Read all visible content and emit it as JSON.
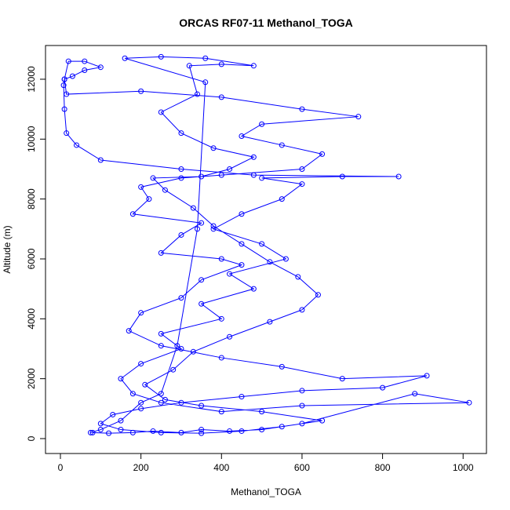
{
  "chart_data": {
    "type": "scatter",
    "title": "ORCAS RF07-11 Methanol_TOGA",
    "xlabel": "Methanol_TOGA",
    "ylabel": "Altitude (m)",
    "color": "#0000ff",
    "connect": true,
    "xlim": [
      -37,
      1058
    ],
    "ylim": [
      -498,
      13126
    ],
    "xticks": [
      0,
      200,
      400,
      600,
      800,
      1000
    ],
    "yticks": [
      0,
      2000,
      4000,
      6000,
      8000,
      10000,
      12000
    ],
    "x": [
      80,
      120,
      180,
      230,
      300,
      350,
      420,
      500,
      600,
      880,
      1015,
      600,
      400,
      250,
      180,
      150,
      200,
      300,
      250,
      400,
      350,
      480,
      420,
      560,
      500,
      380,
      450,
      550,
      600,
      500,
      700,
      840,
      480,
      300,
      100,
      40,
      15,
      10,
      8,
      10,
      30,
      60,
      100,
      60,
      20,
      10,
      15,
      200,
      400,
      600,
      740,
      500,
      450,
      550,
      650,
      600,
      400,
      300,
      200,
      220,
      180,
      350,
      300,
      250,
      400,
      450,
      350,
      300,
      200,
      170,
      250,
      400,
      550,
      700,
      910,
      800,
      600,
      450,
      300,
      200,
      130,
      100,
      150,
      250,
      350,
      450,
      550,
      650,
      500,
      350,
      260,
      210,
      280,
      330,
      420,
      520,
      600,
      640,
      590,
      520,
      450,
      380,
      330,
      260,
      230,
      350,
      420,
      480,
      380,
      300,
      250,
      340,
      320,
      400,
      480,
      360,
      250,
      160,
      360,
      340,
      290,
      250,
      200,
      150,
      100,
      75
    ],
    "values": [
      200,
      180,
      200,
      250,
      200,
      300,
      250,
      300,
      500,
      1500,
      1200,
      1100,
      900,
      1200,
      1500,
      2000,
      2500,
      3000,
      3500,
      4000,
      4500,
      5000,
      5500,
      6000,
      6500,
      7000,
      7500,
      8000,
      8500,
      8700,
      8750,
      8750,
      8800,
      9000,
      9300,
      9800,
      10200,
      11000,
      11800,
      12000,
      12100,
      12300,
      12400,
      12600,
      12600,
      12000,
      11500,
      11600,
      11400,
      11000,
      10750,
      10500,
      10100,
      9800,
      9500,
      9000,
      8800,
      8700,
      8400,
      8000,
      7500,
      7200,
      6800,
      6200,
      6000,
      5800,
      5300,
      4700,
      4200,
      3600,
      3100,
      2700,
      2400,
      2000,
      2100,
      1700,
      1600,
      1400,
      1200,
      1000,
      800,
      500,
      300,
      200,
      180,
      250,
      400,
      600,
      900,
      1100,
      1300,
      1800,
      2300,
      2900,
      3400,
      3900,
      4300,
      4800,
      5400,
      5900,
      6500,
      7100,
      7700,
      8300,
      8700,
      8750,
      9000,
      9400,
      9700,
      10200,
      10900,
      11500,
      12450,
      12500,
      12450,
      12700,
      12750,
      12700,
      11900,
      7000,
      3100,
      1500,
      1200,
      600,
      300,
      200
    ]
  }
}
